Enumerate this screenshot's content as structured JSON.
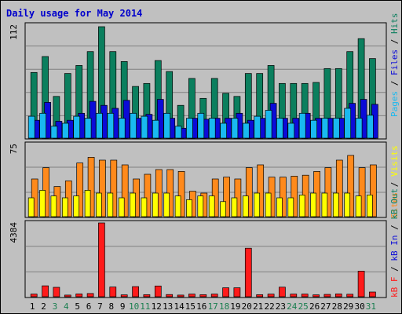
{
  "title": "Daily usage for May 2014",
  "colors": {
    "background": "#c0c0c0",
    "hits": "#0b7f5e",
    "files": "#0b0bd8",
    "pages": "#19b9f0",
    "sites": "#ff8a1c",
    "visits": "#ffff00",
    "kb": "#ff1a1a",
    "weekday_label": "#000000",
    "weekend_label": "#1b7f50",
    "slash": "#000000"
  },
  "chart_data": [
    {
      "type": "bar",
      "panel": "hits-files-pages",
      "categories": [
        "1",
        "2",
        "3",
        "4",
        "5",
        "6",
        "7",
        "8",
        "9",
        "10",
        "11",
        "12",
        "13",
        "14",
        "15",
        "16",
        "17",
        "18",
        "19",
        "20",
        "21",
        "22",
        "23",
        "24",
        "25",
        "26",
        "27",
        "28",
        "29",
        "30",
        "31"
      ],
      "ymax_label": "112",
      "ylim": [
        0,
        112
      ],
      "series": [
        {
          "name": "Hits",
          "values": [
            66,
            82,
            42,
            65,
            73,
            87,
            112,
            87,
            77,
            52,
            55,
            78,
            67,
            33,
            60,
            40,
            60,
            45,
            42,
            65,
            65,
            73,
            55,
            55,
            55,
            56,
            70,
            70,
            87,
            100,
            80
          ]
        },
        {
          "name": "Files",
          "values": [
            18,
            36,
            17,
            18,
            25,
            37,
            33,
            30,
            38,
            20,
            24,
            39,
            20,
            10,
            20,
            19,
            20,
            20,
            25,
            18,
            20,
            35,
            20,
            20,
            25,
            20,
            20,
            20,
            35,
            39,
            34
          ]
        },
        {
          "name": "Pages",
          "values": [
            22,
            25,
            12,
            15,
            22,
            20,
            25,
            25,
            20,
            25,
            22,
            18,
            25,
            12,
            20,
            25,
            20,
            15,
            20,
            15,
            22,
            28,
            20,
            15,
            25,
            18,
            20,
            20,
            30,
            20,
            23
          ]
        }
      ],
      "side_labels": [
        "Pages",
        "Files",
        "Hits"
      ]
    },
    {
      "type": "bar",
      "panel": "sites-visits",
      "categories": [
        "1",
        "2",
        "3",
        "4",
        "5",
        "6",
        "7",
        "8",
        "9",
        "10",
        "11",
        "12",
        "13",
        "14",
        "15",
        "16",
        "17",
        "18",
        "19",
        "20",
        "21",
        "22",
        "23",
        "24",
        "25",
        "26",
        "27",
        "28",
        "29",
        "30",
        "31"
      ],
      "ymax_label": "75",
      "ylim": [
        0,
        75
      ],
      "series": [
        {
          "name": "Sites",
          "values": [
            40,
            52,
            32,
            38,
            57,
            63,
            60,
            60,
            55,
            40,
            45,
            50,
            50,
            48,
            27,
            25,
            40,
            42,
            40,
            52,
            55,
            42,
            42,
            43,
            44,
            48,
            52,
            60,
            65,
            52,
            55
          ]
        },
        {
          "name": "Visits",
          "values": [
            20,
            28,
            22,
            20,
            22,
            28,
            25,
            25,
            20,
            25,
            20,
            25,
            25,
            22,
            18,
            22,
            22,
            16,
            20,
            22,
            25,
            25,
            20,
            20,
            23,
            25,
            25,
            25,
            25,
            22,
            23
          ]
        }
      ],
      "side_labels": [
        "Sites",
        "Visits"
      ]
    },
    {
      "type": "bar",
      "panel": "kbytes",
      "categories": [
        "1",
        "2",
        "3",
        "4",
        "5",
        "6",
        "7",
        "8",
        "9",
        "10",
        "11",
        "12",
        "13",
        "14",
        "15",
        "16",
        "17",
        "18",
        "19",
        "20",
        "21",
        "22",
        "23",
        "24",
        "25",
        "26",
        "27",
        "28",
        "29",
        "30",
        "31"
      ],
      "ymax_label": "4384",
      "ylim": [
        0,
        4384
      ],
      "series": [
        {
          "name": "kB F",
          "values": [
            160,
            650,
            560,
            100,
            170,
            190,
            4384,
            580,
            110,
            600,
            120,
            640,
            130,
            100,
            160,
            120,
            160,
            530,
            530,
            2880,
            120,
            160,
            570,
            160,
            160,
            110,
            140,
            170,
            150,
            1520,
            280
          ]
        }
      ],
      "side_labels": [
        "kB F",
        "kB In",
        "kB Out"
      ]
    }
  ]
}
